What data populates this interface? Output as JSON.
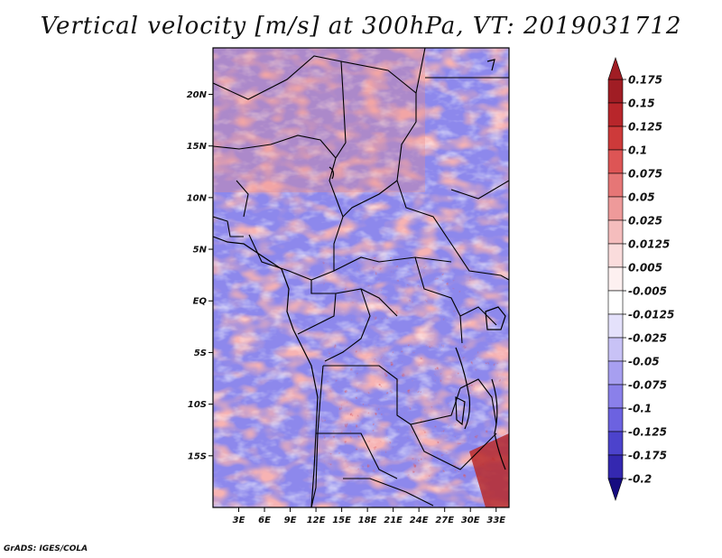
{
  "title": "Vertical velocity [m/s] at 300hPa, VT: 2019031712",
  "credit": "GrADS: IGES/COLA",
  "map": {
    "lon_range": [
      0,
      34.5
    ],
    "lat_range": [
      -20,
      24.5
    ],
    "lat_ticks": [
      {
        "value": 20,
        "label": "20N"
      },
      {
        "value": 15,
        "label": "15N"
      },
      {
        "value": 10,
        "label": "10N"
      },
      {
        "value": 5,
        "label": "5N"
      },
      {
        "value": 0,
        "label": "EQ"
      },
      {
        "value": -5,
        "label": "5S"
      },
      {
        "value": -10,
        "label": "10S"
      },
      {
        "value": -15,
        "label": "15S"
      }
    ],
    "lon_ticks": [
      {
        "value": 3,
        "label": "3E"
      },
      {
        "value": 6,
        "label": "6E"
      },
      {
        "value": 9,
        "label": "9E"
      },
      {
        "value": 12,
        "label": "12E"
      },
      {
        "value": 15,
        "label": "15E"
      },
      {
        "value": 18,
        "label": "18E"
      },
      {
        "value": 21,
        "label": "21E"
      },
      {
        "value": 24,
        "label": "24E"
      },
      {
        "value": 27,
        "label": "27E"
      },
      {
        "value": 30,
        "label": "30E"
      },
      {
        "value": 33,
        "label": "33E"
      }
    ]
  },
  "colorbar": {
    "levels": [
      "0.175",
      "0.15",
      "0.125",
      "0.1",
      "0.075",
      "0.05",
      "0.025",
      "0.0125",
      "0.005",
      "-0.005",
      "-0.0125",
      "-0.025",
      "-0.05",
      "-0.075",
      "-0.1",
      "-0.125",
      "-0.175",
      "-0.2"
    ],
    "colors": [
      "#a01d24",
      "#b8262b",
      "#cd3a3a",
      "#dd5555",
      "#e67676",
      "#ee9a9a",
      "#f5bdbd",
      "#fadcdc",
      "#fdf0f0",
      "#ffffff",
      "#e4e1fb",
      "#c8c2f6",
      "#a79ff0",
      "#8a80ea",
      "#6c62e0",
      "#4c43cc",
      "#3428b0",
      "#22189a",
      "#160c80"
    ]
  }
}
